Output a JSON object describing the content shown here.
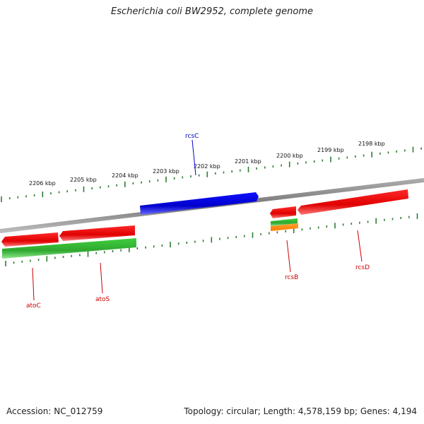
{
  "title": "Escherichia coli BW2952, complete genome",
  "footer": {
    "accession": "Accession: NC_012759",
    "stats": "Topology: circular; Length: 4,578,159 bp; Genes: 4,194"
  },
  "scale_labels": [
    "2206 kbp",
    "2205 kbp",
    "2204 kbp",
    "2203 kbp",
    "2202 kbp",
    "2201 kbp",
    "2200 kbp",
    "2199 kbp",
    "2198 kbp"
  ],
  "gene_labels": {
    "rcsC": "rcsC",
    "rcsB": "rcsB",
    "rcsD": "rcsD",
    "atoC": "atoC",
    "atoS": "atoS"
  },
  "colors": {
    "forward_gene": "#e00000",
    "reverse_gene": "#31b531",
    "rcsC_gene": "#0000dd",
    "rcsC_label": "#0000cc",
    "gene_label": "#cc0000",
    "ticks": "#2e7d32",
    "backbone": "#888888",
    "orange_gene": "#ff8c00"
  }
}
